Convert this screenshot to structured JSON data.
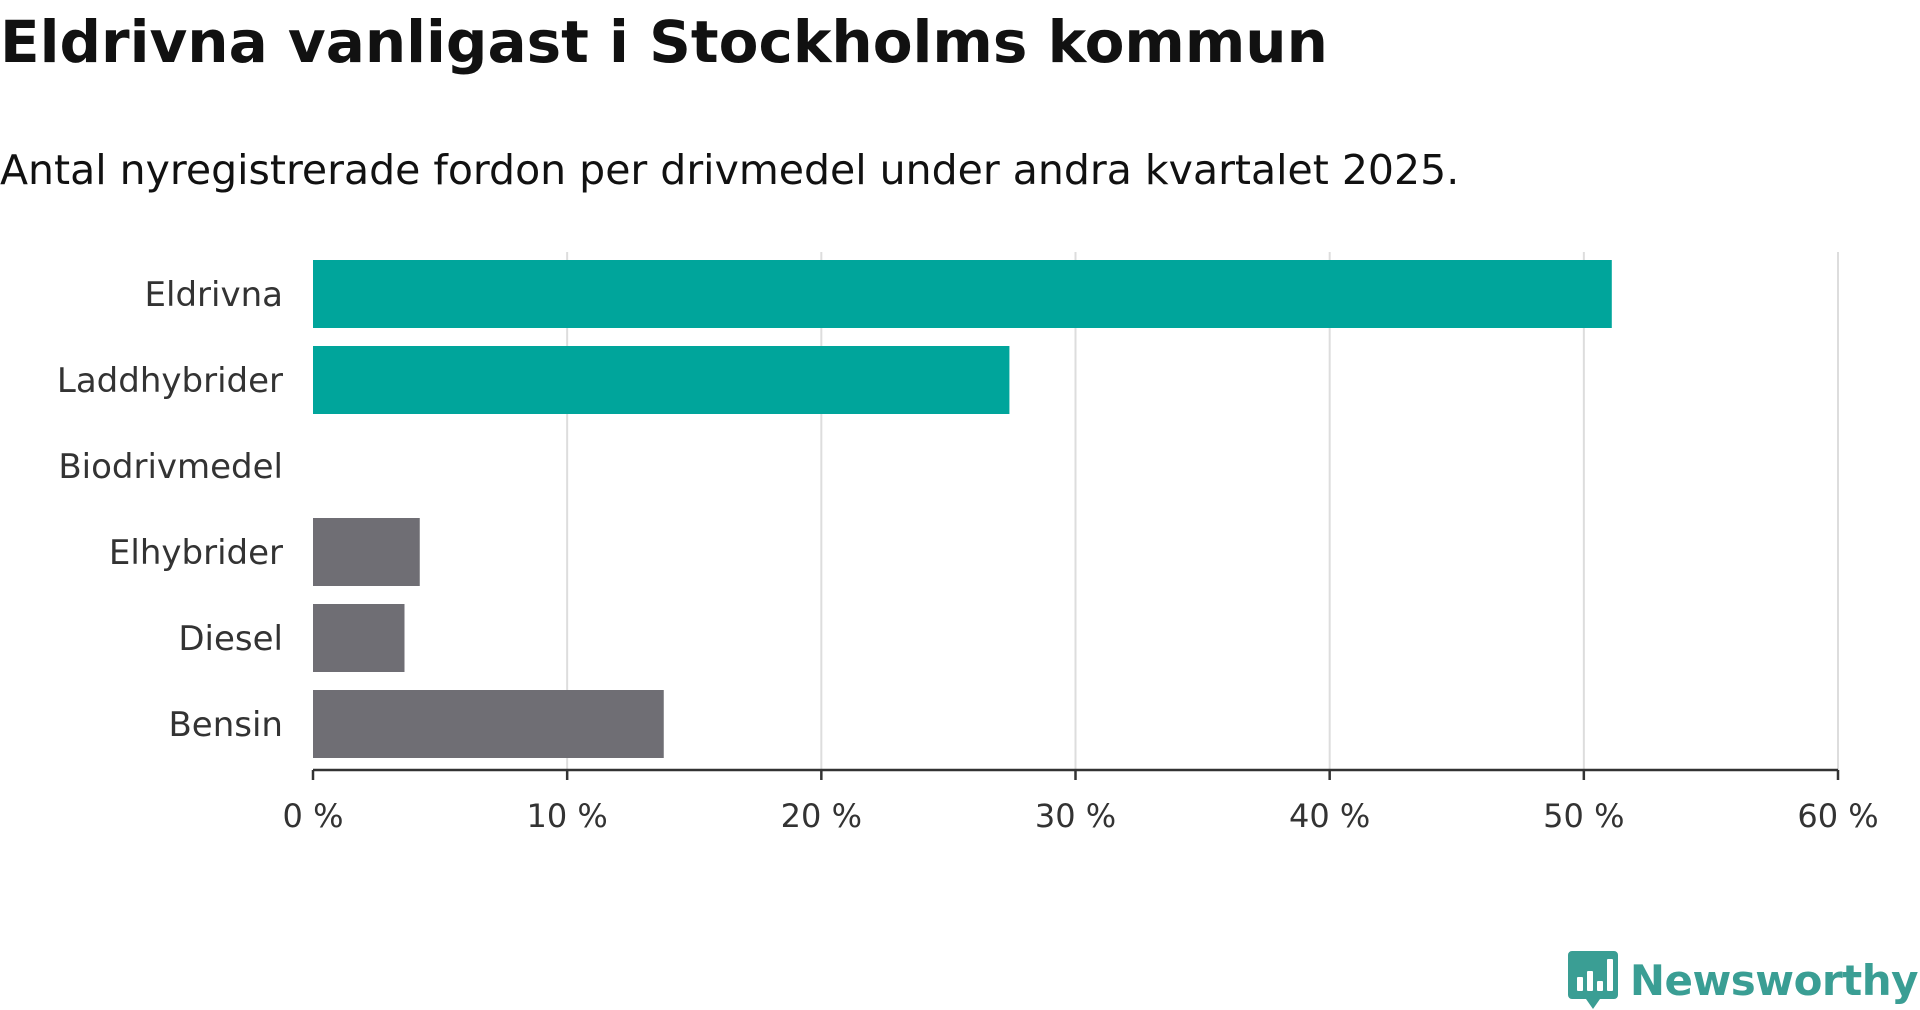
{
  "page": {
    "title": "Eldrivna vanligast i Stockholms kommun",
    "subtitle": "Antal nyregistrerade fordon per drivmedel under andra kvartalet 2025.",
    "brand": "Newsworthy"
  },
  "colors": {
    "highlight": "#00a59b",
    "neutral": "#6f6e74",
    "brand": "#3a9e94",
    "grid": "#dddddd",
    "axis": "#333333"
  },
  "icons": {
    "logo": "newsworthy-chart-bubble-icon"
  },
  "chart_data": {
    "type": "bar",
    "orientation": "horizontal",
    "title": "Eldrivna vanligast i Stockholms kommun",
    "subtitle": "Antal nyregistrerade fordon per drivmedel under andra kvartalet 2025.",
    "categories": [
      "Eldrivna",
      "Laddhybrider",
      "Biodrivmedel",
      "Elhybrider",
      "Diesel",
      "Bensin"
    ],
    "values": [
      51.1,
      27.4,
      0,
      4.2,
      3.6,
      13.8
    ],
    "highlighted": [
      true,
      true,
      false,
      false,
      false,
      false
    ],
    "xlim": [
      0,
      60
    ],
    "xticks": [
      0,
      10,
      20,
      30,
      40,
      50,
      60
    ],
    "xtick_labels": [
      "0 %",
      "10 %",
      "20 %",
      "30 %",
      "40 %",
      "50 %",
      "60 %"
    ],
    "xlabel": "",
    "ylabel": "",
    "grid": "vertical",
    "legend": "none"
  }
}
